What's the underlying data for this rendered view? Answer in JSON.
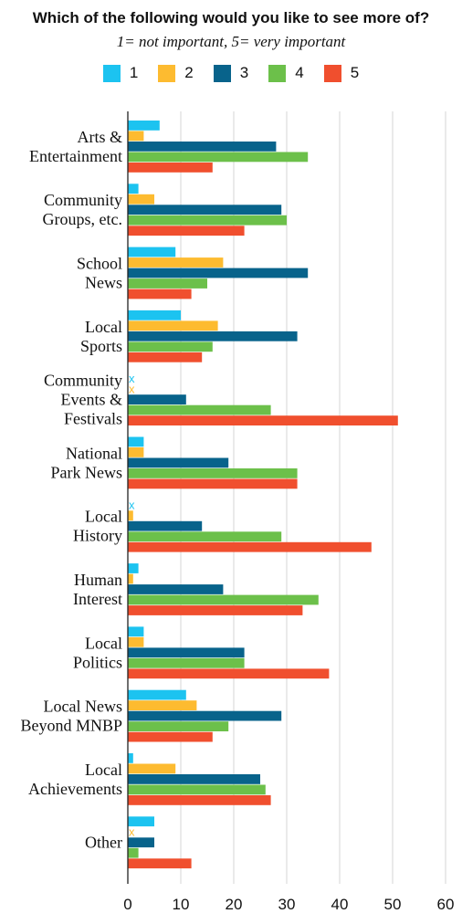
{
  "chart_data": {
    "type": "bar",
    "orientation": "horizontal",
    "title": "Which of the following would you like to see more of?",
    "subtitle": "1= not important,  5= very important",
    "categories": [
      [
        "Arts &",
        "Entertainment"
      ],
      [
        "Community",
        "Groups, etc."
      ],
      [
        "School",
        "News"
      ],
      [
        "Local",
        "Sports"
      ],
      [
        "Community",
        "Events &",
        "Festivals"
      ],
      [
        "National",
        "Park News"
      ],
      [
        "Local",
        "History"
      ],
      [
        "Human",
        "Interest"
      ],
      [
        "Local",
        "Politics"
      ],
      [
        "Local News",
        "Beyond MNBP"
      ],
      [
        "Local",
        "Achievements"
      ],
      [
        "Other"
      ]
    ],
    "series": [
      {
        "name": "1",
        "color": "#1cc3f0",
        "values": [
          6,
          2,
          9,
          10,
          0,
          3,
          0,
          2,
          3,
          11,
          1,
          5
        ]
      },
      {
        "name": "2",
        "color": "#fdbb30",
        "values": [
          3,
          5,
          18,
          17,
          0,
          3,
          1,
          1,
          3,
          13,
          9,
          0
        ]
      },
      {
        "name": "3",
        "color": "#08638b",
        "values": [
          28,
          29,
          34,
          32,
          11,
          19,
          14,
          18,
          22,
          29,
          25,
          5
        ]
      },
      {
        "name": "4",
        "color": "#6cc04a",
        "values": [
          34,
          30,
          15,
          16,
          27,
          32,
          29,
          36,
          22,
          19,
          26,
          2
        ]
      },
      {
        "name": "5",
        "color": "#f04f2e",
        "values": [
          16,
          22,
          12,
          14,
          51,
          32,
          46,
          33,
          38,
          16,
          27,
          12
        ]
      }
    ],
    "zero_marker": "x",
    "xlim": [
      0,
      60
    ],
    "xticks": [
      0,
      10,
      20,
      30,
      40,
      50,
      60
    ],
    "grid": "vertical",
    "legend_position": "top"
  }
}
